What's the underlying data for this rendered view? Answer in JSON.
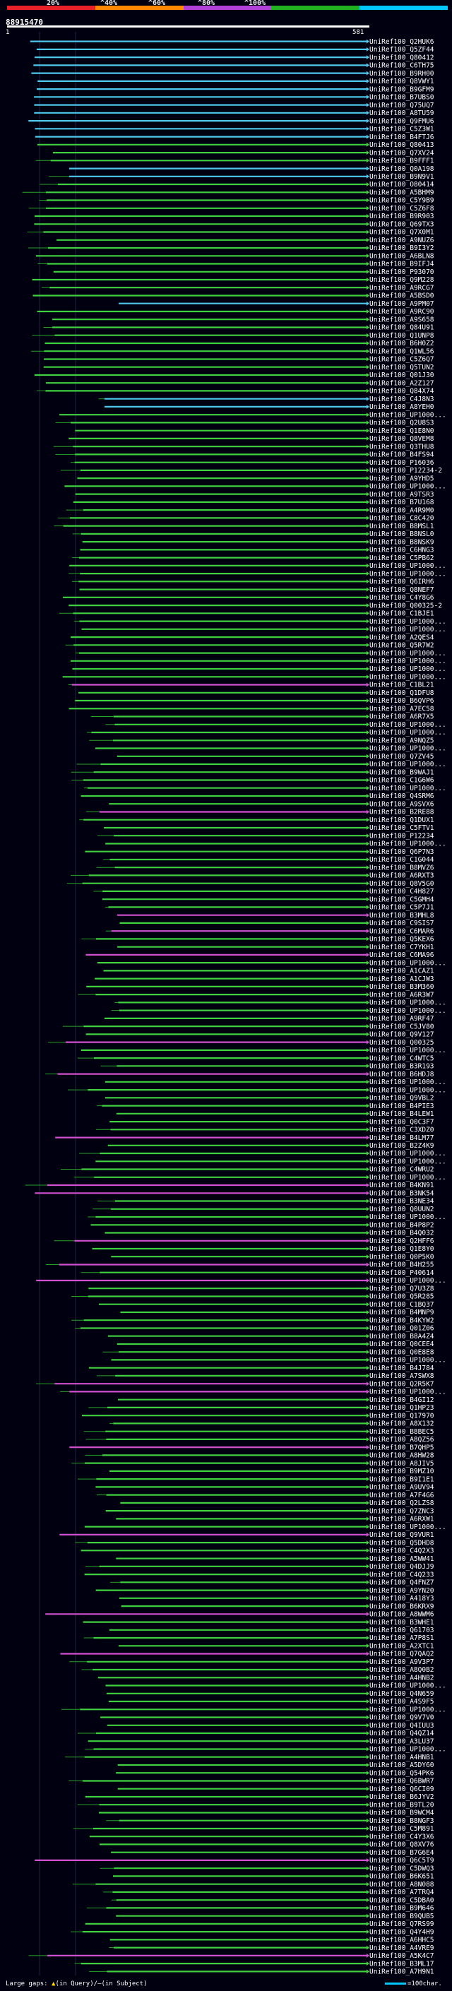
{
  "scale": {
    "ticks": [
      "20%",
      "^40%",
      "^60%",
      "^80%",
      "^100%"
    ],
    "colors": [
      "#e8202a",
      "#ff8800",
      "#b040d8",
      "#20b020",
      "#00c8ff"
    ]
  },
  "query": {
    "id": "88915470",
    "start": "1",
    "end": "581"
  },
  "hit_colors": {
    "cyan": "#4ec8ec",
    "green": "#40d040",
    "magenta": "#d050d0",
    "gap": "#2aa22a"
  },
  "hits": [
    {
      "label": "UniRef100_Q2HUK6",
      "c": "cyan"
    },
    {
      "label": "UniRef100_Q5ZF44",
      "c": "cyan"
    },
    {
      "label": "UniRef100_Q80412",
      "c": "cyan"
    },
    {
      "label": "UniRef100_C6TH75",
      "c": "cyan"
    },
    {
      "label": "UniRef100_B9RH00",
      "c": "cyan"
    },
    {
      "label": "UniRef100_Q8VWY1",
      "c": "cyan"
    },
    {
      "label": "UniRef100_B9GFM9",
      "c": "cyan"
    },
    {
      "label": "UniRef100_B7UBS0",
      "c": "cyan"
    },
    {
      "label": "UniRef100_Q75UQ7",
      "c": "cyan"
    },
    {
      "label": "UniRef100_A8TU59",
      "c": "cyan"
    },
    {
      "label": "UniRef100_Q9FMU6",
      "c": "cyan"
    },
    {
      "label": "UniRef100_C5Z3W1",
      "c": "cyan"
    },
    {
      "label": "UniRef100_B4FTJ6",
      "c": "cyan"
    },
    {
      "label": "UniRef100_Q80413",
      "c": "green"
    },
    {
      "label": "UniRef100_Q7XV24",
      "c": "green"
    },
    {
      "label": "UniRef100_B9FFF1",
      "c": "green"
    },
    {
      "label": "UniRef100_Q0A198",
      "c": "cyan"
    },
    {
      "label": "UniRef100_B9N9V1",
      "c": "cyan"
    },
    {
      "label": "UniRef100_O80414",
      "c": "green"
    },
    {
      "label": "UniRef100_A5BHM9",
      "c": "green"
    },
    {
      "label": "UniRef100_C5Y9B9",
      "c": "green"
    },
    {
      "label": "UniRef100_C5Z6F8",
      "c": "green"
    },
    {
      "label": "UniRef100_B9R903",
      "c": "green"
    },
    {
      "label": "UniRef100_Q69TX3",
      "c": "green"
    },
    {
      "label": "UniRef100_Q7X0M1",
      "c": "green"
    },
    {
      "label": "UniRef100_A9NUZ6",
      "c": "green"
    },
    {
      "label": "UniRef100_B9I3Y2",
      "c": "green"
    },
    {
      "label": "UniRef100_A6BLN8",
      "c": "green"
    },
    {
      "label": "UniRef100_B9IFJ4",
      "c": "green"
    },
    {
      "label": "UniRef100_P93070",
      "c": "green"
    },
    {
      "label": "UniRef100_Q9M228",
      "c": "green"
    },
    {
      "label": "UniRef100_A9RCG7",
      "c": "green"
    },
    {
      "label": "UniRef100_A5BSD0",
      "c": "green"
    },
    {
      "label": "UniRef100_A9PM07",
      "c": "cyan"
    },
    {
      "label": "UniRef100_A9RC90",
      "c": "green"
    },
    {
      "label": "UniRef100_A9S658",
      "c": "green"
    },
    {
      "label": "UniRef100_Q84U91",
      "c": "green"
    },
    {
      "label": "UniRef100_Q1UNP8",
      "c": "green"
    },
    {
      "label": "UniRef100_B6H0Z2",
      "c": "green"
    },
    {
      "label": "UniRef100_Q1WL56",
      "c": "green"
    },
    {
      "label": "UniRef100_C5Z6Q7",
      "c": "green"
    },
    {
      "label": "UniRef100_Q5TUN2",
      "c": "green"
    },
    {
      "label": "UniRef100_Q01J30",
      "c": "green"
    },
    {
      "label": "UniRef100_A2Z127",
      "c": "green"
    },
    {
      "label": "UniRef100_Q84X74",
      "c": "green"
    },
    {
      "label": "UniRef100_C4J8N3",
      "c": "cyan"
    },
    {
      "label": "UniRef100_A8YEH0",
      "c": "cyan"
    },
    {
      "label": "UniRef100_UP1000...",
      "c": "green"
    },
    {
      "label": "UniRef100_Q2U8S3",
      "c": "green"
    },
    {
      "label": "UniRef100_Q1E8N0",
      "c": "green"
    },
    {
      "label": "UniRef100_Q8VEM8",
      "c": "green"
    },
    {
      "label": "UniRef100_Q3THU8",
      "c": "green"
    },
    {
      "label": "UniRef100_B4FS94",
      "c": "green"
    },
    {
      "label": "UniRef100_P16036",
      "c": "green"
    },
    {
      "label": "UniRef100_P12234-2",
      "c": "green"
    },
    {
      "label": "UniRef100_A9YHD5",
      "c": "green"
    },
    {
      "label": "UniRef100_UP1000...",
      "c": "green"
    },
    {
      "label": "UniRef100_A9TSR3",
      "c": "green"
    },
    {
      "label": "UniRef100_B7U168",
      "c": "green"
    },
    {
      "label": "UniRef100_A4R9M0",
      "c": "green"
    },
    {
      "label": "UniRef100_C8C420",
      "c": "green"
    },
    {
      "label": "UniRef100_B8MSL1",
      "c": "green"
    },
    {
      "label": "UniRef100_B8NSL0",
      "c": "green"
    },
    {
      "label": "UniRef100_B8NSK9",
      "c": "green"
    },
    {
      "label": "UniRef100_C6HNG3",
      "c": "green"
    },
    {
      "label": "UniRef100_C5PB62",
      "c": "green"
    },
    {
      "label": "UniRef100_UP1000...",
      "c": "green"
    },
    {
      "label": "UniRef100_UP1000...",
      "c": "green"
    },
    {
      "label": "UniRef100_Q6IRH6",
      "c": "green"
    },
    {
      "label": "UniRef100_Q8NEF7",
      "c": "green"
    },
    {
      "label": "UniRef100_C4Y8G6",
      "c": "green"
    },
    {
      "label": "UniRef100_Q00325-2",
      "c": "green"
    },
    {
      "label": "UniRef100_C1BJE1",
      "c": "green"
    },
    {
      "label": "UniRef100_UP1000...",
      "c": "green"
    },
    {
      "label": "UniRef100_UP1000...",
      "c": "green"
    },
    {
      "label": "UniRef100_A2QES4",
      "c": "green"
    },
    {
      "label": "UniRef100_Q5R7W2",
      "c": "green"
    },
    {
      "label": "UniRef100_UP1000...",
      "c": "green"
    },
    {
      "label": "UniRef100_UP1000...",
      "c": "green"
    },
    {
      "label": "UniRef100_UP1000...",
      "c": "green"
    },
    {
      "label": "UniRef100_UP1000...",
      "c": "green"
    },
    {
      "label": "UniRef100_C1BL21",
      "c": "magenta"
    },
    {
      "label": "UniRef100_Q1DFU8",
      "c": "green"
    },
    {
      "label": "UniRef100_B6QVP6",
      "c": "green"
    },
    {
      "label": "UniRef100_A7EC58",
      "c": "green"
    },
    {
      "label": "UniRef100_A6R7X5",
      "c": "green"
    },
    {
      "label": "UniRef100_UP1000...",
      "c": "green"
    },
    {
      "label": "UniRef100_UP1000...",
      "c": "green"
    },
    {
      "label": "UniRef100_A9NQZ5",
      "c": "green"
    },
    {
      "label": "UniRef100_UP1000...",
      "c": "green"
    },
    {
      "label": "UniRef100_Q7ZV45",
      "c": "green"
    },
    {
      "label": "UniRef100_UP1000...",
      "c": "green"
    },
    {
      "label": "UniRef100_B9WAJ1",
      "c": "green"
    },
    {
      "label": "UniRef100_C1G6W6",
      "c": "green"
    },
    {
      "label": "UniRef100_UP1000...",
      "c": "green"
    },
    {
      "label": "UniRef100_Q4SRM6",
      "c": "green"
    },
    {
      "label": "UniRef100_A9SVX6",
      "c": "green"
    },
    {
      "label": "UniRef100_B2RE88",
      "c": "magenta"
    },
    {
      "label": "UniRef100_Q1DUX1",
      "c": "green"
    },
    {
      "label": "UniRef100_C5FTV1",
      "c": "green"
    },
    {
      "label": "UniRef100_P12234",
      "c": "green"
    },
    {
      "label": "UniRef100_UP1000...",
      "c": "green"
    },
    {
      "label": "UniRef100_Q6P7N3",
      "c": "green"
    },
    {
      "label": "UniRef100_C1G044",
      "c": "green"
    },
    {
      "label": "UniRef100_B8MVZ6",
      "c": "green"
    },
    {
      "label": "UniRef100_A6RXT3",
      "c": "green"
    },
    {
      "label": "UniRef100_Q8V5G0",
      "c": "green"
    },
    {
      "label": "UniRef100_C4H827",
      "c": "green"
    },
    {
      "label": "UniRef100_C5GMH4",
      "c": "green"
    },
    {
      "label": "UniRef100_C5P7J1",
      "c": "green"
    },
    {
      "label": "UniRef100_B3MHL8",
      "c": "magenta"
    },
    {
      "label": "UniRef100_C9SIS7",
      "c": "green"
    },
    {
      "label": "UniRef100_C6MAR6",
      "c": "magenta"
    },
    {
      "label": "UniRef100_Q5KEX6",
      "c": "green"
    },
    {
      "label": "UniRef100_C7YKH1",
      "c": "green"
    },
    {
      "label": "UniRef100_C6MA96",
      "c": "magenta"
    },
    {
      "label": "UniRef100_UP1000...",
      "c": "green"
    },
    {
      "label": "UniRef100_A1CAZ1",
      "c": "green"
    },
    {
      "label": "UniRef100_A1CJW3",
      "c": "green"
    },
    {
      "label": "UniRef100_B3M360",
      "c": "green"
    },
    {
      "label": "UniRef100_A6R3W7",
      "c": "green"
    },
    {
      "label": "UniRef100_UP1000...",
      "c": "green"
    },
    {
      "label": "UniRef100_UP1000...",
      "c": "green"
    },
    {
      "label": "UniRef100_A9RF47",
      "c": "green"
    },
    {
      "label": "UniRef100_C5JV80",
      "c": "green"
    },
    {
      "label": "UniRef100_Q9V127",
      "c": "green"
    },
    {
      "label": "UniRef100_Q00325",
      "c": "magenta"
    },
    {
      "label": "UniRef100_UP1000...",
      "c": "green"
    },
    {
      "label": "UniRef100_C4WTC5",
      "c": "green"
    },
    {
      "label": "UniRef100_B3R193",
      "c": "green"
    },
    {
      "label": "UniRef100_B6HDJ8",
      "c": "magenta"
    },
    {
      "label": "UniRef100_UP1000...",
      "c": "green"
    },
    {
      "label": "UniRef100_UP1000...",
      "c": "green"
    },
    {
      "label": "UniRef100_Q9VBL2",
      "c": "green"
    },
    {
      "label": "UniRef100_B4PIE3",
      "c": "green"
    },
    {
      "label": "UniRef100_B4LEW1",
      "c": "green"
    },
    {
      "label": "UniRef100_Q0C3F7",
      "c": "green"
    },
    {
      "label": "UniRef100_C3XDZ0",
      "c": "green"
    },
    {
      "label": "UniRef100_B4LM77",
      "c": "magenta"
    },
    {
      "label": "UniRef100_B2Z4K9",
      "c": "green"
    },
    {
      "label": "UniRef100_UP1000...",
      "c": "green"
    },
    {
      "label": "UniRef100_UP1000...",
      "c": "green"
    },
    {
      "label": "UniRef100_C4WRU2",
      "c": "green"
    },
    {
      "label": "UniRef100_UP1000...",
      "c": "green"
    },
    {
      "label": "UniRef100_B4KN91",
      "c": "magenta"
    },
    {
      "label": "UniRef100_B3NK54",
      "c": "magenta"
    },
    {
      "label": "UniRef100_B3NE34",
      "c": "green"
    },
    {
      "label": "UniRef100_Q0UUN2",
      "c": "green"
    },
    {
      "label": "UniRef100_UP1000...",
      "c": "green"
    },
    {
      "label": "UniRef100_B4P8P2",
      "c": "green"
    },
    {
      "label": "UniRef100_B4Q032",
      "c": "green"
    },
    {
      "label": "UniRef100_Q2HFF6",
      "c": "magenta"
    },
    {
      "label": "UniRef100_Q1E8Y0",
      "c": "green"
    },
    {
      "label": "UniRef100_Q0P5K0",
      "c": "green"
    },
    {
      "label": "UniRef100_B4H255",
      "c": "magenta"
    },
    {
      "label": "UniRef100_P40614",
      "c": "green"
    },
    {
      "label": "UniRef100_UP1000...",
      "c": "magenta"
    },
    {
      "label": "UniRef100_Q7U3Z8",
      "c": "green"
    },
    {
      "label": "UniRef100_Q5R285",
      "c": "green"
    },
    {
      "label": "UniRef100_C1BQ37",
      "c": "green"
    },
    {
      "label": "UniRef100_B4MNP9",
      "c": "green"
    },
    {
      "label": "UniRef100_B4KYW2",
      "c": "green"
    },
    {
      "label": "UniRef100_Q01Z06",
      "c": "green"
    },
    {
      "label": "UniRef100_B8A4Z4",
      "c": "green"
    },
    {
      "label": "UniRef100_Q0CEE4",
      "c": "green"
    },
    {
      "label": "UniRef100_Q0E8E8",
      "c": "green"
    },
    {
      "label": "UniRef100_UP1000...",
      "c": "green"
    },
    {
      "label": "UniRef100_B4J784",
      "c": "green"
    },
    {
      "label": "UniRef100_A7SWX8",
      "c": "green"
    },
    {
      "label": "UniRef100_Q2R5K7",
      "c": "magenta"
    },
    {
      "label": "UniRef100_UP1000...",
      "c": "magenta"
    },
    {
      "label": "UniRef100_B4GI12",
      "c": "green"
    },
    {
      "label": "UniRef100_Q1HP23",
      "c": "green"
    },
    {
      "label": "UniRef100_Q17970",
      "c": "green"
    },
    {
      "label": "UniRef100_A8X132",
      "c": "green"
    },
    {
      "label": "UniRef100_B8BEC5",
      "c": "green"
    },
    {
      "label": "UniRef100_A8QZ56",
      "c": "green"
    },
    {
      "label": "UniRef100_B7QHP5",
      "c": "magenta"
    },
    {
      "label": "UniRef100_A8HW28",
      "c": "green"
    },
    {
      "label": "UniRef100_A8JIV5",
      "c": "green"
    },
    {
      "label": "UniRef100_B9MZ10",
      "c": "green"
    },
    {
      "label": "UniRef100_B9I1E1",
      "c": "green"
    },
    {
      "label": "UniRef100_A9UV94",
      "c": "green"
    },
    {
      "label": "UniRef100_A7F4G6",
      "c": "green"
    },
    {
      "label": "UniRef100_Q2LZS8",
      "c": "green"
    },
    {
      "label": "UniRef100_Q7ZNC3",
      "c": "green"
    },
    {
      "label": "UniRef100_A6RXW1",
      "c": "green"
    },
    {
      "label": "UniRef100_UP1000...",
      "c": "green"
    },
    {
      "label": "UniRef100_Q9VUR1",
      "c": "magenta"
    },
    {
      "label": "UniRef100_Q5DHD8",
      "c": "green"
    },
    {
      "label": "UniRef100_C4Q2X3",
      "c": "green"
    },
    {
      "label": "UniRef100_A5WW41",
      "c": "green"
    },
    {
      "label": "UniRef100_Q4DJJ9",
      "c": "green"
    },
    {
      "label": "UniRef100_C4Q233",
      "c": "green"
    },
    {
      "label": "UniRef100_Q4FNZ7",
      "c": "green"
    },
    {
      "label": "UniRef100_A9YN20",
      "c": "green"
    },
    {
      "label": "UniRef100_A418Y3",
      "c": "green"
    },
    {
      "label": "UniRef100_B6KRX9",
      "c": "green"
    },
    {
      "label": "UniRef100_A8WWM6",
      "c": "magenta"
    },
    {
      "label": "UniRef100_B3WHE1",
      "c": "green"
    },
    {
      "label": "UniRef100_Q61703",
      "c": "green"
    },
    {
      "label": "UniRef100_A7P8S1",
      "c": "green"
    },
    {
      "label": "UniRef100_A2XTC1",
      "c": "green"
    },
    {
      "label": "UniRef100_Q7QAQ2",
      "c": "magenta"
    },
    {
      "label": "UniRef100_A9V3P7",
      "c": "green"
    },
    {
      "label": "UniRef100_A8Q0B2",
      "c": "green"
    },
    {
      "label": "UniRef100_A4HNB2",
      "c": "green"
    },
    {
      "label": "UniRef100_UP1000...",
      "c": "green"
    },
    {
      "label": "UniRef100_Q4N659",
      "c": "green"
    },
    {
      "label": "UniRef100_A4S9F5",
      "c": "green"
    },
    {
      "label": "UniRef100_UP1000...",
      "c": "green"
    },
    {
      "label": "UniRef100_Q9V7V0",
      "c": "green"
    },
    {
      "label": "UniRef100_Q4IUU3",
      "c": "green"
    },
    {
      "label": "UniRef100_Q4QZ14",
      "c": "green"
    },
    {
      "label": "UniRef100_A3LU37",
      "c": "green"
    },
    {
      "label": "UniRef100_UP1000...",
      "c": "green"
    },
    {
      "label": "UniRef100_A4HNB1",
      "c": "green"
    },
    {
      "label": "UniRef100_A5DY60",
      "c": "green"
    },
    {
      "label": "UniRef100_Q54PK6",
      "c": "green"
    },
    {
      "label": "UniRef100_Q6BWR7",
      "c": "green"
    },
    {
      "label": "UniRef100_Q6CI09",
      "c": "green"
    },
    {
      "label": "UniRef100_B6JYV2",
      "c": "green"
    },
    {
      "label": "UniRef100_B9TL20",
      "c": "green"
    },
    {
      "label": "UniRef100_B9WCM4",
      "c": "green"
    },
    {
      "label": "UniRef100_B8NGF3",
      "c": "green"
    },
    {
      "label": "UniRef100_C5M891",
      "c": "green"
    },
    {
      "label": "UniRef100_C4Y3X6",
      "c": "green"
    },
    {
      "label": "UniRef100_Q8XV76",
      "c": "green"
    },
    {
      "label": "UniRef100_B7G6E4",
      "c": "green"
    },
    {
      "label": "UniRef100_Q6C5T9",
      "c": "magenta"
    },
    {
      "label": "UniRef100_C5DWQ3",
      "c": "green"
    },
    {
      "label": "UniRef100_B6K651",
      "c": "green"
    },
    {
      "label": "UniRef100_A8N088",
      "c": "green"
    },
    {
      "label": "UniRef100_A7TRQ4",
      "c": "green"
    },
    {
      "label": "UniRef100_C5DBA0",
      "c": "green"
    },
    {
      "label": "UniRef100_B9M646",
      "c": "green"
    },
    {
      "label": "UniRef100_B9QUB5",
      "c": "green"
    },
    {
      "label": "UniRef100_Q7RS99",
      "c": "green"
    },
    {
      "label": "UniRef100_Q4Y4H9",
      "c": "green"
    },
    {
      "label": "UniRef100_A6HHC5",
      "c": "green"
    },
    {
      "label": "UniRef100_A4VRE9",
      "c": "green"
    },
    {
      "label": "UniRef100_A5K4C7",
      "c": "magenta"
    },
    {
      "label": "UniRef100_B3ML17",
      "c": "green"
    },
    {
      "label": "UniRef100_A7H9N1",
      "c": "green"
    }
  ],
  "footer": {
    "prefix": "Large gaps:",
    "triangle": "▲",
    "middle": "(in Query)/",
    "slash_symbol": "—",
    "suffix": "(in Subject)"
  },
  "scale_legend": {
    "label": "=100char."
  }
}
